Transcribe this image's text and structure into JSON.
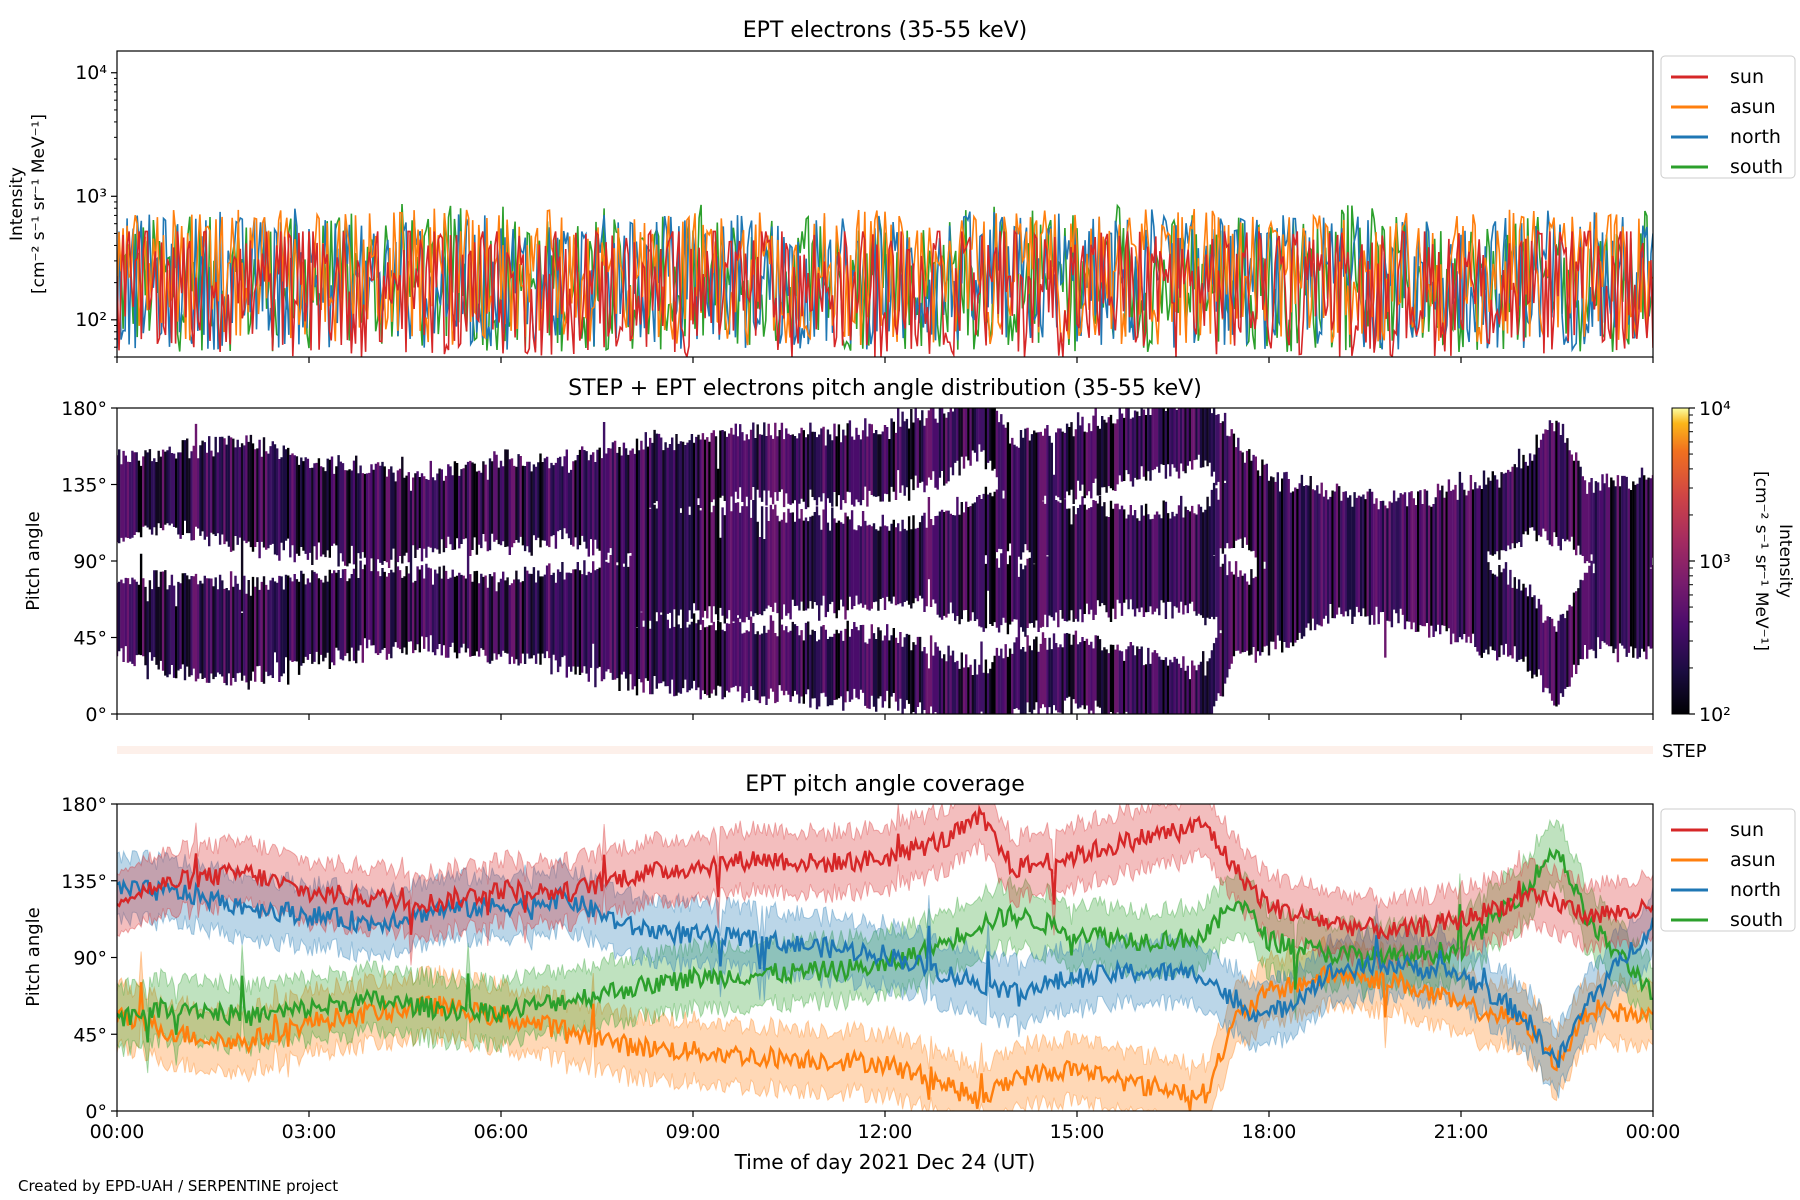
{
  "footer": {
    "credit": "Created by EPD-UAH / SERPENTINE project"
  },
  "x_axis": {
    "label": "Time of day 2021 Dec 24 (UT)",
    "range_hours": [
      0,
      24
    ],
    "ticks": [
      "00:00",
      "03:00",
      "06:00",
      "09:00",
      "12:00",
      "15:00",
      "18:00",
      "21:00",
      "00:00"
    ],
    "tick_hours": [
      0,
      3,
      6,
      9,
      12,
      15,
      18,
      21,
      24
    ]
  },
  "series_colors": {
    "sun": "#d62728",
    "asun": "#ff7f0e",
    "north": "#1f77b4",
    "south": "#2ca02c"
  },
  "chart_data": [
    {
      "type": "line",
      "title": "EPT electrons (35-55 keV)",
      "ylabel_line1": "Intensity",
      "ylabel_line2": "[cm⁻² s⁻¹ sr⁻¹ MeV⁻¹]",
      "yscale": "log",
      "ylim": [
        50,
        15000
      ],
      "yticks": [
        {
          "value": 100,
          "label": "10²"
        },
        {
          "value": 1000,
          "label": "10³"
        },
        {
          "value": 10000,
          "label": "10⁴"
        }
      ],
      "legend_position": "outside-right",
      "grid": false,
      "series": [
        {
          "name": "sun",
          "level_range": [
            50,
            520
          ],
          "typical": 200
        },
        {
          "name": "asun",
          "level_range": [
            50,
            800
          ],
          "typical": 250
        },
        {
          "name": "north",
          "level_range": [
            50,
            800
          ],
          "typical": 230
        },
        {
          "name": "south",
          "level_range": [
            50,
            870
          ],
          "typical": 220
        }
      ]
    },
    {
      "type": "heatmap",
      "title": "STEP + EPT electrons pitch angle distribution (35-55 keV)",
      "ylabel": "Pitch angle",
      "ylim": [
        0,
        180
      ],
      "yticks": [
        "0°",
        "45°",
        "90°",
        "135°",
        "180°"
      ],
      "colorbar": {
        "label_line1": "Intensity",
        "label_line2": "[cm⁻² s⁻¹ sr⁻¹ MeV⁻¹]",
        "scale": "log",
        "range": [
          100,
          10000
        ],
        "ticks": [
          "10²",
          "10³",
          "10⁴"
        ],
        "colormap": "inferno"
      },
      "typical_intensity": 300
    },
    {
      "type": "strip",
      "label": "STEP",
      "color": "#fdf0ea"
    },
    {
      "type": "line",
      "title": "EPT pitch angle coverage",
      "ylabel": "Pitch angle",
      "ylim": [
        0,
        180
      ],
      "yticks": [
        "0°",
        "45°",
        "90°",
        "135°",
        "180°"
      ],
      "legend_position": "outside-right",
      "band_halfwidth_deg": 18,
      "x": [
        0,
        1,
        2,
        3,
        4,
        5,
        6,
        7,
        8,
        9,
        10,
        11,
        12,
        13,
        13.5,
        14,
        15,
        16,
        17,
        17.5,
        18,
        19,
        20,
        21,
        22,
        22.5,
        23,
        24
      ],
      "series": [
        {
          "name": "sun",
          "values": [
            125,
            135,
            140,
            128,
            125,
            122,
            130,
            128,
            138,
            143,
            148,
            145,
            148,
            160,
            172,
            142,
            150,
            160,
            168,
            140,
            120,
            110,
            105,
            112,
            125,
            122,
            115,
            118
          ]
        },
        {
          "name": "north",
          "values": [
            130,
            128,
            120,
            115,
            110,
            118,
            120,
            125,
            108,
            103,
            100,
            96,
            92,
            80,
            75,
            70,
            78,
            82,
            80,
            62,
            55,
            82,
            86,
            80,
            55,
            28,
            65,
            110
          ]
        },
        {
          "name": "south",
          "values": [
            55,
            62,
            55,
            60,
            65,
            60,
            58,
            65,
            72,
            78,
            80,
            82,
            85,
            100,
            110,
            115,
            105,
            100,
            102,
            125,
            100,
            92,
            90,
            95,
            130,
            155,
            110,
            70
          ]
        },
        {
          "name": "asun",
          "values": [
            55,
            45,
            40,
            52,
            58,
            62,
            55,
            48,
            38,
            35,
            32,
            30,
            28,
            15,
            5,
            20,
            25,
            15,
            10,
            55,
            70,
            80,
            76,
            62,
            52,
            28,
            60,
            55
          ]
        }
      ]
    }
  ]
}
